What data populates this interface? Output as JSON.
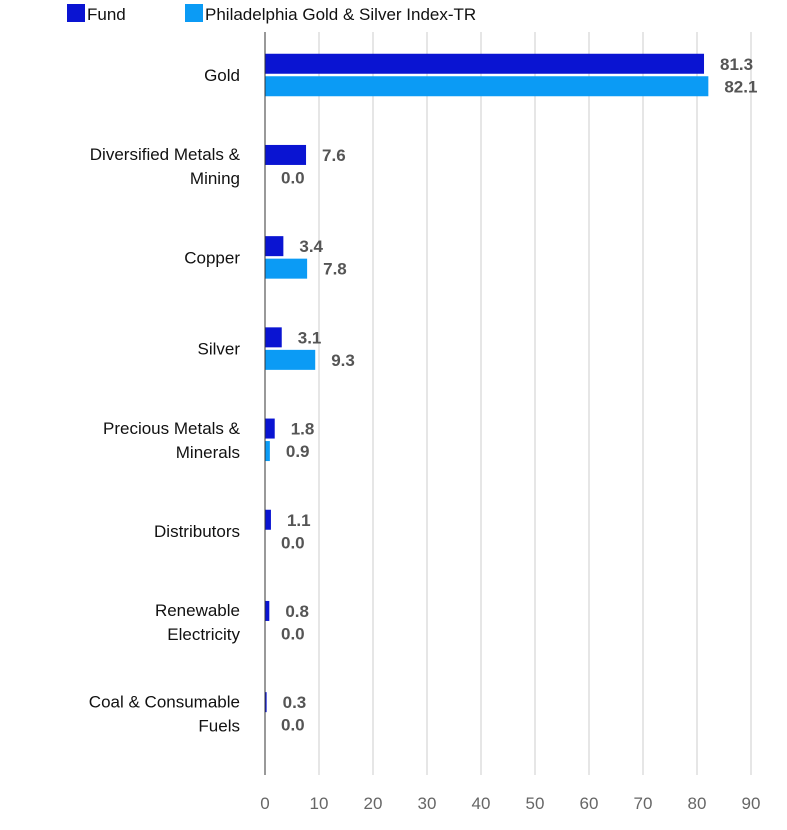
{
  "chart_data": {
    "type": "bar",
    "orientation": "horizontal",
    "categories": [
      [
        "Gold"
      ],
      [
        "Diversified Metals &",
        "Mining"
      ],
      [
        "Copper"
      ],
      [
        "Silver"
      ],
      [
        "Precious Metals &",
        "Minerals"
      ],
      [
        "Distributors"
      ],
      [
        "Renewable",
        "Electricity"
      ],
      [
        "Coal & Consumable",
        "Fuels"
      ]
    ],
    "series": [
      {
        "name": "Fund",
        "color": "#0a14d2",
        "values": [
          81.3,
          7.6,
          3.4,
          3.1,
          1.8,
          1.1,
          0.8,
          0.3
        ],
        "labels": [
          "81.3",
          "7.6",
          "3.4",
          "3.1",
          "1.8",
          "1.1",
          "0.8",
          "0.3"
        ]
      },
      {
        "name": "Philadelphia Gold & Silver Index-TR",
        "color": "#0b9bf5",
        "values": [
          82.1,
          0.0,
          7.8,
          9.3,
          0.9,
          0.0,
          0.0,
          0.0
        ],
        "labels": [
          "82.1",
          "0.0",
          "7.8",
          "9.3",
          "0.9",
          "0.0",
          "0.0",
          "0.0"
        ]
      }
    ],
    "xlim": [
      0,
      90
    ],
    "xticks": [
      0,
      10,
      20,
      30,
      40,
      50,
      60,
      70,
      80,
      90
    ],
    "xtick_labels": [
      "0",
      "10",
      "20",
      "30",
      "40",
      "50",
      "60",
      "70",
      "80",
      "90"
    ],
    "grid": true,
    "legend_position": "top-left"
  }
}
